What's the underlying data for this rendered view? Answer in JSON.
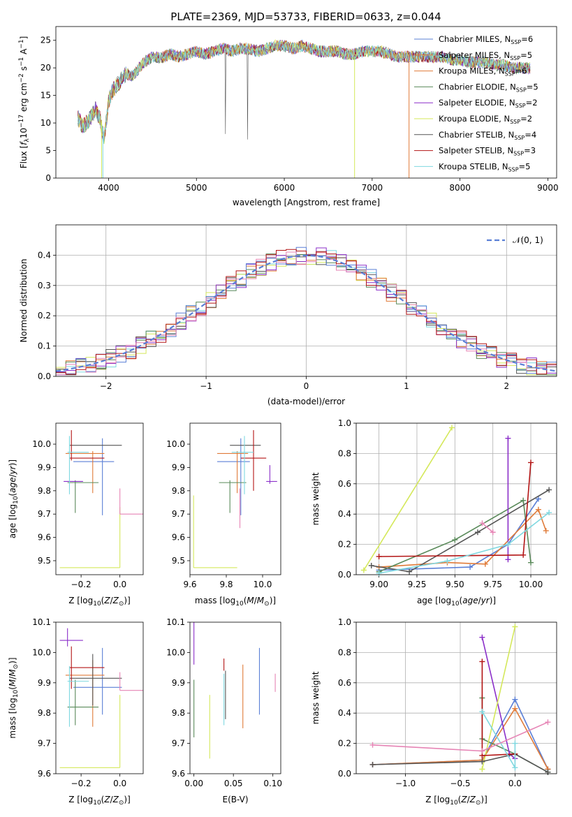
{
  "figure": {
    "title": "PLATE=2369, MJD=53733, FIBERID=0633, z=0.044"
  },
  "colors": {
    "c0": "#5a7fd6",
    "c1": "#e07b39",
    "c2": "#5a8a5a",
    "c3": "#8b2fc9",
    "c4": "#d4e85a",
    "c5": "#555555",
    "c6": "#b31515",
    "c7": "#7fd8e0",
    "c8": "#e684b5"
  },
  "chart_data": [
    {
      "id": "spectrum",
      "type": "line",
      "xlabel": "wavelength [Angstrom, rest frame]",
      "ylabel": "Flux [fλ10⁻¹⁷ erg cm⁻² s⁻¹ A⁻¹]",
      "xlim": [
        3400,
        9100
      ],
      "ylim": [
        0,
        27.5
      ],
      "xticks": [
        4000,
        5000,
        6000,
        7000,
        8000,
        9000
      ],
      "yticks": [
        0,
        5,
        10,
        15,
        20,
        25
      ],
      "legend_position": "top-right",
      "spectrum_envelope": {
        "x": [
          3650,
          3700,
          3750,
          3800,
          3850,
          3900,
          3950,
          4000,
          4050,
          4100,
          4150,
          4200,
          4250,
          4300,
          4350,
          4400,
          4450,
          4500,
          4600,
          4700,
          4800,
          4900,
          5000,
          5100,
          5200,
          5300,
          5400,
          5500,
          5600,
          5700,
          5800,
          5900,
          6000,
          6100,
          6200,
          6300,
          6400,
          6500,
          6600,
          6700,
          6800,
          6900,
          7000,
          7100,
          7200,
          7300,
          7400,
          7500,
          7600,
          7700,
          7800,
          7900,
          8000,
          8100,
          8200,
          8300,
          8400,
          8500,
          8600,
          8700,
          8800
        ],
        "y": [
          11,
          9.5,
          10,
          11,
          12.5,
          11,
          7,
          14,
          16,
          17,
          18,
          19,
          18.5,
          19,
          20,
          21,
          21.5,
          22,
          21.8,
          22.5,
          22,
          22.5,
          23,
          22.5,
          23,
          23.5,
          23,
          23.5,
          23.5,
          23,
          23.5,
          24,
          24,
          23.5,
          24,
          23.5,
          23,
          23,
          23,
          22.5,
          22.5,
          23,
          23,
          23,
          22.5,
          22,
          22,
          22,
          22,
          22,
          22,
          21.5,
          21.5,
          21,
          21,
          21,
          20.5,
          20.5,
          20,
          20,
          20
        ]
      },
      "series": [
        {
          "name": "Chabrier MILES, N_SSP=6",
          "color": "#5a7fd6"
        },
        {
          "name": "Salpeter MILES, N_SSP=5",
          "color": "#e07b39"
        },
        {
          "name": "Kroupa MILES, N_SSP=6",
          "color": "#e07b39"
        },
        {
          "name": "Chabrier ELODIE, N_SSP=5",
          "color": "#5a8a5a"
        },
        {
          "name": "Salpeter ELODIE, N_SSP=2",
          "color": "#8b2fc9"
        },
        {
          "name": "Kroupa ELODIE, N_SSP=2",
          "color": "#d4e85a"
        },
        {
          "name": "Chabrier STELIB, N_SSP=4",
          "color": "#555555"
        },
        {
          "name": "Salpeter STELIB, N_SSP=3",
          "color": "#b31515"
        },
        {
          "name": "Kroupa STELIB, N_SSP=5",
          "color": "#7fd8e0"
        }
      ],
      "legend_entries": [
        {
          "label": "Chabrier MILES, N",
          "sub": "SSP",
          "suffix": "=6",
          "color": "#5a7fd6"
        },
        {
          "label": "Salpeter MILES, N",
          "sub": "SSP",
          "suffix": "=5",
          "color": "#e07b39"
        },
        {
          "label": "Kroupa MILES, N",
          "sub": "SSP",
          "suffix": "=6",
          "color": "#e07b39"
        },
        {
          "label": "Chabrier ELODIE, N",
          "sub": "SSP",
          "suffix": "=5",
          "color": "#5a8a5a"
        },
        {
          "label": "Salpeter ELODIE, N",
          "sub": "SSP",
          "suffix": "=2",
          "color": "#8b2fc9"
        },
        {
          "label": "Kroupa ELODIE, N",
          "sub": "SSP",
          "suffix": "=2",
          "color": "#d4e85a"
        },
        {
          "label": "Chabrier STELIB, N",
          "sub": "SSP",
          "suffix": "=4",
          "color": "#555555"
        },
        {
          "label": "Salpeter STELIB, N",
          "sub": "SSP",
          "suffix": "=3",
          "color": "#b31515"
        },
        {
          "label": "Kroupa STELIB, N",
          "sub": "SSP",
          "suffix": "=5",
          "color": "#7fd8e0"
        }
      ]
    },
    {
      "id": "residuals",
      "type": "line",
      "xlabel": "(data-model)/error",
      "ylabel": "Normed distribution",
      "xlim": [
        -2.5,
        2.5
      ],
      "ylim": [
        0,
        0.5
      ],
      "xticks": [
        -2,
        -1,
        0,
        1,
        2
      ],
      "yticks": [
        0.0,
        0.1,
        0.2,
        0.3,
        0.4
      ],
      "grid": true,
      "legend_position": "top-right",
      "legend": "𝒩(0, 1)",
      "bin_edges_start": -2.5,
      "bin_width": 0.1
    },
    {
      "id": "age_vs_Z",
      "type": "scatter",
      "xlabel": "Z [log10(Z/Z⊙)]",
      "ylabel": "age  [log10(age/yr)]",
      "xlim": [
        -0.33,
        0.12
      ],
      "ylim": [
        9.44,
        10.09
      ],
      "xticks": [
        -0.2,
        0.0
      ],
      "yticks": [
        9.5,
        9.6,
        9.7,
        9.8,
        9.9,
        10.0
      ],
      "points": [
        {
          "x": -0.09,
          "xerr": [
            0.15,
            0.06
          ],
          "y": 9.925,
          "yerr": [
            0.23,
            0.1
          ],
          "color": "#5a7fd6"
        },
        {
          "x": -0.14,
          "xerr": [
            0.14,
            0.06
          ],
          "y": 9.96,
          "yerr": [
            0.17,
            0.01
          ],
          "color": "#e07b39"
        },
        {
          "x": -0.23,
          "xerr": [
            0.04,
            0.12
          ],
          "y": 9.835,
          "yerr": [
            0.13,
            0.01
          ],
          "color": "#5a8a5a"
        },
        {
          "x": -0.27,
          "xerr": [
            0.02,
            0.08
          ],
          "y": 9.84,
          "yerr": [
            0.001,
            0.001
          ],
          "color": "#8b2fc9"
        },
        {
          "x": 0.0,
          "xerr": [
            0.31,
            0.0
          ],
          "y": 9.47,
          "yerr": [
            0.0,
            0.26
          ],
          "color": "#d4e85a"
        },
        {
          "x": -0.14,
          "xerr": [
            0.12,
            0.15
          ],
          "y": 9.995,
          "yerr": [
            0.0,
            0.0
          ],
          "color": "#555555"
        },
        {
          "x": -0.25,
          "xerr": [
            0.01,
            0.17
          ],
          "y": 9.94,
          "yerr": [
            0.01,
            0.12
          ],
          "color": "#b31515"
        },
        {
          "x": -0.26,
          "xerr": [
            0.01,
            0.1
          ],
          "y": 9.965,
          "yerr": [
            0.18,
            0.07
          ],
          "color": "#7fd8e0"
        },
        {
          "x": 0.0,
          "xerr": [
            0.0,
            0.12
          ],
          "y": 9.7,
          "yerr": [
            0.0,
            0.11
          ],
          "color": "#e684b5"
        }
      ]
    },
    {
      "id": "age_vs_mass",
      "type": "scatter",
      "xlabel": "mass [log10(M/M⊙)]",
      "ylabel": "",
      "xlim": [
        9.6,
        10.1
      ],
      "ylim": [
        9.44,
        10.09
      ],
      "xticks": [
        9.6,
        9.8,
        10.0
      ],
      "yticks": [
        9.5,
        9.6,
        9.7,
        9.8,
        9.9,
        10.0
      ],
      "points": [
        {
          "x": 9.88,
          "xerr": [
            0.13,
            0.05
          ],
          "y": 9.925,
          "yerr": [
            0.23,
            0.1
          ],
          "color": "#5a7fd6"
        },
        {
          "x": 9.86,
          "xerr": [
            0.11,
            0.06
          ],
          "y": 9.96,
          "yerr": [
            0.17,
            0.01
          ],
          "color": "#e07b39"
        },
        {
          "x": 9.82,
          "xerr": [
            0.06,
            0.09
          ],
          "y": 9.835,
          "yerr": [
            0.13,
            0.01
          ],
          "color": "#5a8a5a"
        },
        {
          "x": 10.04,
          "xerr": [
            0.02,
            0.04
          ],
          "y": 9.84,
          "yerr": [
            0.01,
            0.07
          ],
          "color": "#8b2fc9"
        },
        {
          "x": 9.62,
          "xerr": [
            0.0,
            0.24
          ],
          "y": 9.47,
          "yerr": [
            0.0,
            0.31
          ],
          "color": "#d4e85a"
        },
        {
          "x": 9.91,
          "xerr": [
            0.09,
            0.08
          ],
          "y": 9.995,
          "yerr": [
            0.0,
            0.0
          ],
          "color": "#555555"
        },
        {
          "x": 9.95,
          "xerr": [
            0.07,
            0.07
          ],
          "y": 9.94,
          "yerr": [
            0.14,
            0.12
          ],
          "color": "#b31515"
        },
        {
          "x": 9.9,
          "xerr": [
            0.07,
            0.05
          ],
          "y": 9.965,
          "yerr": [
            0.18,
            0.07
          ],
          "color": "#7fd8e0"
        },
        {
          "x": 9.875,
          "xerr": [
            0.0,
            0.0
          ],
          "y": 9.72,
          "yerr": [
            0.08,
            0.09
          ],
          "color": "#e684b5"
        }
      ]
    },
    {
      "id": "massweight_vs_age",
      "type": "line",
      "xlabel": "age  [log10(age/yr)]",
      "ylabel": "mass weight",
      "xlim": [
        8.85,
        10.17
      ],
      "ylim": [
        0,
        1.0
      ],
      "xticks": [
        9.0,
        9.25,
        9.5,
        9.75,
        10.0
      ],
      "yticks": [
        0.0,
        0.2,
        0.4,
        0.6,
        0.8,
        1.0
      ],
      "grid": true,
      "series": [
        {
          "color": "#5a7fd6",
          "x": [
            9.0,
            9.6,
            9.85,
            10.05
          ],
          "y": [
            0.03,
            0.05,
            0.2,
            0.5
          ]
        },
        {
          "color": "#e07b39",
          "x": [
            9.0,
            9.45,
            9.7,
            10.05,
            10.1
          ],
          "y": [
            0.05,
            0.08,
            0.07,
            0.43,
            0.29
          ]
        },
        {
          "color": "#5a8a5a",
          "x": [
            9.0,
            9.5,
            9.95,
            10.0
          ],
          "y": [
            0.02,
            0.23,
            0.49,
            0.08
          ]
        },
        {
          "color": "#8b2fc9",
          "x": [
            9.85,
            9.85
          ],
          "y": [
            0.1,
            0.9
          ]
        },
        {
          "color": "#d4e85a",
          "x": [
            8.9,
            9.48
          ],
          "y": [
            0.03,
            0.97
          ]
        },
        {
          "color": "#555555",
          "x": [
            8.95,
            9.2,
            9.65,
            10.12
          ],
          "y": [
            0.06,
            0.02,
            0.28,
            0.56
          ]
        },
        {
          "color": "#b31515",
          "x": [
            9.0,
            9.95,
            10.0
          ],
          "y": [
            0.12,
            0.13,
            0.74
          ]
        },
        {
          "color": "#7fd8e0",
          "x": [
            9.0,
            9.45,
            9.85,
            10.12
          ],
          "y": [
            0.01,
            0.09,
            0.2,
            0.41
          ]
        },
        {
          "color": "#e684b5",
          "x": [
            9.68,
            9.75
          ],
          "y": [
            0.34,
            0.28
          ]
        }
      ]
    },
    {
      "id": "mass_vs_Z",
      "type": "scatter",
      "xlabel": "Z [log10(Z/Z⊙)]",
      "ylabel": "mass [log10(M/M⊙)]",
      "xlim": [
        -0.33,
        0.12
      ],
      "ylim": [
        9.6,
        10.1
      ],
      "xticks": [
        -0.2,
        0.0
      ],
      "yticks": [
        9.6,
        9.7,
        9.8,
        9.9,
        10.0,
        10.1
      ],
      "points": [
        {
          "x": -0.09,
          "xerr": [
            0.15,
            0.1
          ],
          "y": 9.885,
          "yerr": [
            0.09,
            0.13
          ],
          "color": "#5a7fd6"
        },
        {
          "x": -0.14,
          "xerr": [
            0.14,
            0.06
          ],
          "y": 9.925,
          "yerr": [
            0.17,
            0.05
          ],
          "color": "#e07b39"
        },
        {
          "x": -0.23,
          "xerr": [
            0.04,
            0.12
          ],
          "y": 9.82,
          "yerr": [
            0.06,
            0.09
          ],
          "color": "#5a8a5a"
        },
        {
          "x": -0.27,
          "xerr": [
            0.04,
            0.08
          ],
          "y": 10.04,
          "yerr": [
            0.02,
            0.04
          ],
          "color": "#8b2fc9"
        },
        {
          "x": 0.0,
          "xerr": [
            0.31,
            0.0
          ],
          "y": 9.62,
          "yerr": [
            0.0,
            0.24
          ],
          "color": "#d4e85a"
        },
        {
          "x": -0.14,
          "xerr": [
            0.12,
            0.15
          ],
          "y": 9.915,
          "yerr": [
            0.09,
            0.08
          ],
          "color": "#555555"
        },
        {
          "x": -0.25,
          "xerr": [
            0.01,
            0.17
          ],
          "y": 9.95,
          "yerr": [
            0.07,
            0.07
          ],
          "color": "#b31515"
        },
        {
          "x": -0.26,
          "xerr": [
            0.01,
            0.1
          ],
          "y": 9.905,
          "yerr": [
            0.15,
            0.05
          ],
          "color": "#7fd8e0"
        },
        {
          "x": 0.0,
          "xerr": [
            0.0,
            0.12
          ],
          "y": 9.875,
          "yerr": [
            0.0,
            0.06
          ],
          "color": "#e684b5"
        }
      ]
    },
    {
      "id": "mass_vs_ebv",
      "type": "scatter",
      "xlabel": "E(B-V)",
      "ylabel": "",
      "xlim": [
        -0.005,
        0.11
      ],
      "ylim": [
        9.6,
        10.1
      ],
      "xticks": [
        0.0,
        0.05,
        0.1
      ],
      "yticks": [
        9.6,
        9.7,
        9.8,
        9.9,
        10.0,
        10.1
      ],
      "points": [
        {
          "x": 0.083,
          "y": 9.885,
          "yerr": [
            0.09,
            0.13
          ],
          "color": "#5a7fd6"
        },
        {
          "x": 0.062,
          "y": 9.87,
          "yerr": [
            0.12,
            0.09
          ],
          "color": "#e07b39"
        },
        {
          "x": 0.0,
          "y": 9.82,
          "yerr": [
            0.1,
            0.09
          ],
          "color": "#5a8a5a"
        },
        {
          "x": 0.0,
          "y": 10.02,
          "yerr": [
            0.06,
            0.08
          ],
          "color": "#8b2fc9"
        },
        {
          "x": 0.02,
          "y": 9.79,
          "yerr": [
            0.14,
            0.07
          ],
          "color": "#d4e85a"
        },
        {
          "x": 0.04,
          "y": 9.86,
          "yerr": [
            0.08,
            0.08
          ],
          "color": "#555555"
        },
        {
          "x": 0.038,
          "y": 9.95,
          "yerr": [
            0.01,
            0.03
          ],
          "color": "#b31515"
        },
        {
          "x": 0.038,
          "y": 9.85,
          "yerr": [
            0.09,
            0.08
          ],
          "color": "#7fd8e0"
        },
        {
          "x": 0.103,
          "y": 9.9,
          "yerr": [
            0.03,
            0.03
          ],
          "color": "#e684b5"
        }
      ]
    },
    {
      "id": "massweight_vs_Z",
      "type": "line",
      "xlabel": "Z [log10(Z/Z⊙)]",
      "ylabel": "mass weight",
      "xlim": [
        -1.45,
        0.38
      ],
      "ylim": [
        0,
        1.0
      ],
      "xticks": [
        -1.0,
        -0.5,
        0.0
      ],
      "yticks": [
        0.0,
        0.2,
        0.4,
        0.6,
        0.8,
        1.0
      ],
      "grid": true,
      "series": [
        {
          "color": "#5a7fd6",
          "x": [
            -1.3,
            -0.3,
            0.0,
            0.3
          ],
          "y": [
            0.06,
            0.09,
            0.49,
            0.03
          ]
        },
        {
          "color": "#e07b39",
          "x": [
            -1.3,
            -0.3,
            0.0,
            0.3
          ],
          "y": [
            0.06,
            0.09,
            0.43,
            0.03
          ]
        },
        {
          "color": "#5a8a5a",
          "x": [
            -0.3,
            -0.3,
            0.0,
            0.3
          ],
          "y": [
            0.5,
            0.23,
            0.13,
            0.01
          ]
        },
        {
          "color": "#8b2fc9",
          "x": [
            -0.3,
            -0.05,
            0.0
          ],
          "y": [
            0.9,
            0.13,
            0.1
          ]
        },
        {
          "color": "#d4e85a",
          "x": [
            -0.3,
            0.0
          ],
          "y": [
            0.03,
            0.97
          ]
        },
        {
          "color": "#555555",
          "x": [
            -1.3,
            -0.3,
            0.0,
            0.3
          ],
          "y": [
            0.06,
            0.08,
            0.13,
            0.01
          ]
        },
        {
          "color": "#b31515",
          "x": [
            -0.3,
            -0.3,
            0.0
          ],
          "y": [
            0.74,
            0.12,
            0.13
          ]
        },
        {
          "color": "#7fd8e0",
          "x": [
            -0.3,
            0.0,
            0.0
          ],
          "y": [
            0.41,
            0.04,
            0.2
          ]
        },
        {
          "color": "#e684b5",
          "x": [
            -1.3,
            -0.3,
            0.3
          ],
          "y": [
            0.19,
            0.15,
            0.34
          ]
        }
      ]
    }
  ]
}
